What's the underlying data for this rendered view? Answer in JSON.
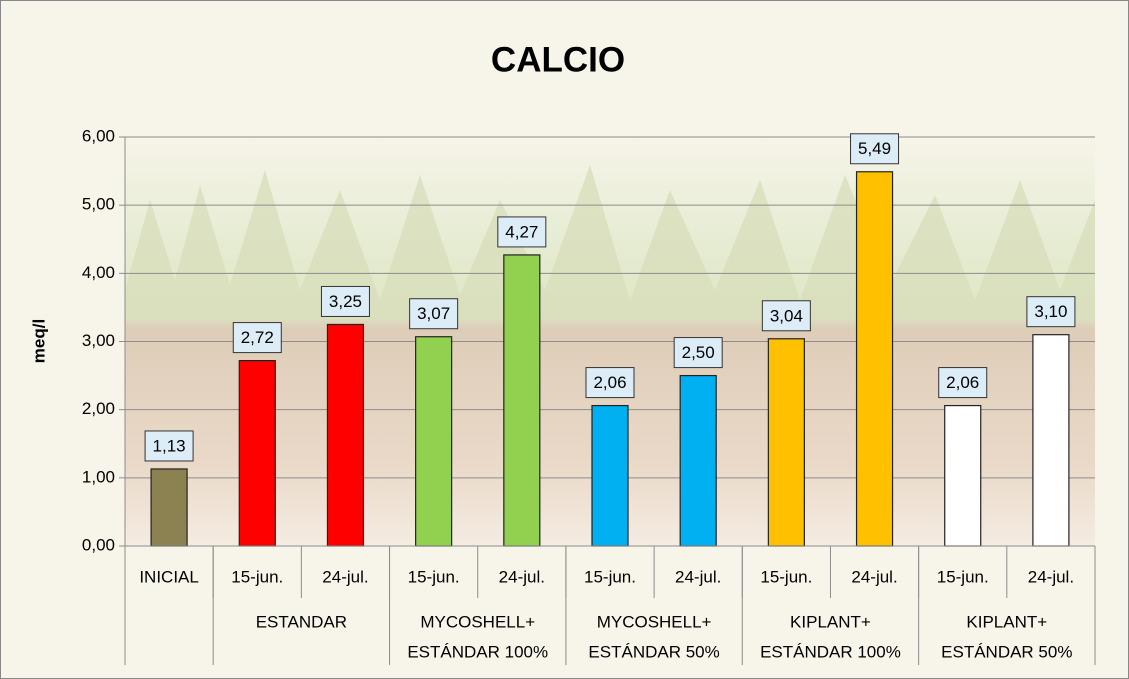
{
  "chart_data": {
    "type": "bar",
    "title": "CALCIO",
    "y_label": "meq/l",
    "categories": [
      "INICIAL",
      "15-jun.",
      "24-jul.",
      "15-jun.",
      "24-jul.",
      "15-jun.",
      "24-jul.",
      "15-jun.",
      "24-jul.",
      "15-jun.",
      "24-jul."
    ],
    "groups": [
      {
        "lines": [],
        "size": 1
      },
      {
        "lines": [
          "ESTANDAR"
        ],
        "size": 2
      },
      {
        "lines": [
          "MYCOSHELL+",
          "ESTÁNDAR 100%"
        ],
        "size": 2
      },
      {
        "lines": [
          "MYCOSHELL+",
          "ESTÁNDAR 50%"
        ],
        "size": 2
      },
      {
        "lines": [
          "KIPLANT+",
          "ESTÁNDAR 100%"
        ],
        "size": 2
      },
      {
        "lines": [
          "KIPLANT+",
          "ESTÁNDAR 50%"
        ],
        "size": 2
      }
    ],
    "values": [
      1.13,
      2.72,
      3.25,
      3.07,
      4.27,
      2.06,
      2.5,
      3.04,
      5.49,
      2.06,
      3.1
    ],
    "value_labels": [
      "1,13",
      "2,72",
      "3,25",
      "3,07",
      "4,27",
      "2,06",
      "2,50",
      "3,04",
      "5,49",
      "2,06",
      "3,10"
    ],
    "colors": [
      "#8c8150",
      "#ff0000",
      "#ff0000",
      "#92d050",
      "#92d050",
      "#00b0f0",
      "#00b0f0",
      "#ffc000",
      "#ffc000",
      "#ffffff",
      "#ffffff"
    ],
    "ylim": [
      0,
      6
    ],
    "yticks": [
      {
        "value": 0,
        "label": "0,00"
      },
      {
        "value": 1,
        "label": "1,00"
      },
      {
        "value": 2,
        "label": "2,00"
      },
      {
        "value": 3,
        "label": "3,00"
      },
      {
        "value": 4,
        "label": "4,00"
      },
      {
        "value": 5,
        "label": "5,00"
      },
      {
        "value": 6,
        "label": "6,00"
      }
    ],
    "grid": true
  }
}
